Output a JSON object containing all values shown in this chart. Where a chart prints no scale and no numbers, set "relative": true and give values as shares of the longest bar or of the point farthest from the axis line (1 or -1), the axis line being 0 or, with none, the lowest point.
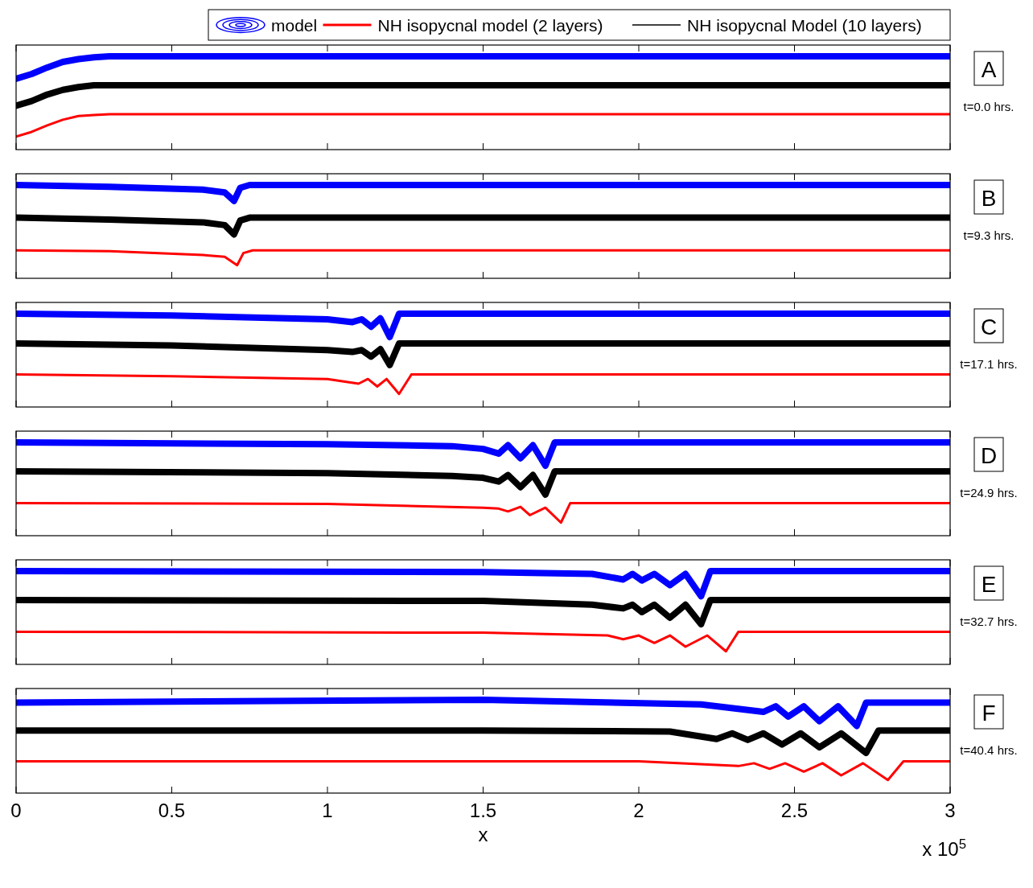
{
  "chart_data": [
    {
      "type": "line",
      "relative": true,
      "xlim": [
        0,
        3
      ],
      "xticks": [
        0,
        0.5,
        1,
        1.5,
        2,
        2.5,
        3
      ],
      "tick_labels": false,
      "legend": "top right",
      "annotations": [
        "A",
        "t=0.0 hrs."
      ],
      "series": [
        {
          "name": "model",
          "color": "#0000ff",
          "x": [
            0,
            0.05,
            0.1,
            0.15,
            0.2,
            0.25,
            0.3,
            3
          ],
          "values": [
            0.76,
            0.81,
            0.88,
            0.94,
            0.97,
            0.99,
            1,
            1
          ]
        },
        {
          "name": "NH isopycnal model (2 layers)",
          "color": "#ff0000",
          "x": [
            0,
            0.05,
            0.1,
            0.15,
            0.2,
            0.25,
            0.3,
            3
          ],
          "values": [
            0.14,
            0.19,
            0.26,
            0.32,
            0.36,
            0.37,
            0.38,
            0.38
          ]
        },
        {
          "name": "NH isopycnal Model (10 layers)",
          "color": "#000000",
          "x": [
            0,
            0.05,
            0.1,
            0.15,
            0.2,
            0.25,
            0.3,
            3
          ],
          "values": [
            0.47,
            0.52,
            0.59,
            0.64,
            0.67,
            0.69,
            0.69,
            0.69
          ]
        }
      ]
    },
    {
      "type": "line",
      "relative": true,
      "xlim": [
        0,
        3
      ],
      "xticks": [
        0,
        0.5,
        1,
        1.5,
        2,
        2.5,
        3
      ],
      "tick_labels": false,
      "annotations": [
        "B",
        "t=9.3 hrs."
      ],
      "series": [
        {
          "color": "#0000ff",
          "x": [
            0,
            0.3,
            0.6,
            0.67,
            0.7,
            0.72,
            0.75,
            3
          ],
          "values": [
            1,
            0.98,
            0.95,
            0.92,
            0.83,
            0.97,
            1,
            1
          ]
        },
        {
          "color": "#ff0000",
          "x": [
            0,
            0.3,
            0.6,
            0.67,
            0.71,
            0.73,
            0.76,
            3
          ],
          "values": [
            0.3,
            0.29,
            0.25,
            0.23,
            0.14,
            0.27,
            0.3,
            0.3
          ]
        },
        {
          "color": "#000000",
          "x": [
            0,
            0.3,
            0.6,
            0.67,
            0.7,
            0.72,
            0.75,
            3
          ],
          "values": [
            0.65,
            0.63,
            0.6,
            0.57,
            0.47,
            0.62,
            0.65,
            0.65
          ]
        }
      ]
    },
    {
      "type": "line",
      "relative": true,
      "xlim": [
        0,
        3
      ],
      "xticks": [
        0,
        0.5,
        1,
        1.5,
        2,
        2.5,
        3
      ],
      "tick_labels": false,
      "annotations": [
        "C",
        "t=17.1 hrs."
      ],
      "series": [
        {
          "color": "#0000ff",
          "x": [
            0,
            0.5,
            1,
            1.08,
            1.11,
            1.14,
            1.17,
            1.2,
            1.23,
            3
          ],
          "values": [
            1,
            0.98,
            0.94,
            0.91,
            0.94,
            0.86,
            0.95,
            0.75,
            1,
            1
          ]
        },
        {
          "color": "#ff0000",
          "x": [
            0,
            0.5,
            1,
            1.1,
            1.13,
            1.16,
            1.19,
            1.23,
            1.27,
            3
          ],
          "values": [
            0.35,
            0.33,
            0.3,
            0.25,
            0.3,
            0.22,
            0.3,
            0.14,
            0.35,
            0.35
          ]
        },
        {
          "color": "#000000",
          "x": [
            0,
            0.5,
            1,
            1.08,
            1.11,
            1.14,
            1.17,
            1.2,
            1.23,
            3
          ],
          "values": [
            0.68,
            0.66,
            0.61,
            0.59,
            0.61,
            0.54,
            0.62,
            0.45,
            0.68,
            0.68
          ]
        }
      ]
    },
    {
      "type": "line",
      "relative": true,
      "xlim": [
        0,
        3
      ],
      "xticks": [
        0,
        0.5,
        1,
        1.5,
        2,
        2.5,
        3
      ],
      "tick_labels": false,
      "annotations": [
        "D",
        "t=24.9 hrs."
      ],
      "series": [
        {
          "color": "#0000ff",
          "x": [
            0,
            1,
            1.4,
            1.5,
            1.55,
            1.58,
            1.62,
            1.66,
            1.7,
            1.73,
            3
          ],
          "values": [
            1,
            0.98,
            0.96,
            0.93,
            0.88,
            0.97,
            0.83,
            0.97,
            0.75,
            1,
            1
          ]
        },
        {
          "color": "#ff0000",
          "x": [
            0,
            1,
            1.5,
            1.55,
            1.58,
            1.62,
            1.65,
            1.7,
            1.75,
            1.78,
            3
          ],
          "values": [
            0.35,
            0.34,
            0.3,
            0.29,
            0.26,
            0.31,
            0.22,
            0.3,
            0.14,
            0.35,
            0.35
          ]
        },
        {
          "color": "#000000",
          "x": [
            0,
            1,
            1.4,
            1.5,
            1.55,
            1.58,
            1.62,
            1.66,
            1.7,
            1.73,
            3
          ],
          "values": [
            0.69,
            0.67,
            0.64,
            0.62,
            0.58,
            0.65,
            0.52,
            0.65,
            0.44,
            0.69,
            0.69
          ]
        }
      ]
    },
    {
      "type": "line",
      "relative": true,
      "xlim": [
        0,
        3
      ],
      "xticks": [
        0,
        0.5,
        1,
        1.5,
        2,
        2.5,
        3
      ],
      "tick_labels": false,
      "annotations": [
        "E",
        "t=32.7 hrs."
      ],
      "series": [
        {
          "color": "#0000ff",
          "x": [
            0,
            1.5,
            1.85,
            1.95,
            1.98,
            2.01,
            2.05,
            2.1,
            2.15,
            2.2,
            2.23,
            3
          ],
          "values": [
            1,
            0.99,
            0.97,
            0.91,
            0.97,
            0.9,
            0.97,
            0.85,
            0.97,
            0.73,
            1,
            1
          ]
        },
        {
          "color": "#ff0000",
          "x": [
            0,
            1.5,
            1.9,
            1.95,
            2,
            2.05,
            2.1,
            2.15,
            2.22,
            2.28,
            2.32,
            3
          ],
          "values": [
            0.35,
            0.34,
            0.31,
            0.27,
            0.31,
            0.23,
            0.31,
            0.19,
            0.31,
            0.14,
            0.35,
            0.35
          ]
        },
        {
          "color": "#000000",
          "x": [
            0,
            1.5,
            1.85,
            1.95,
            1.98,
            2.01,
            2.05,
            2.1,
            2.15,
            2.2,
            2.23,
            3
          ],
          "values": [
            0.69,
            0.68,
            0.64,
            0.6,
            0.64,
            0.56,
            0.64,
            0.5,
            0.64,
            0.43,
            0.69,
            0.69
          ]
        }
      ]
    },
    {
      "type": "line",
      "relative": true,
      "xlim": [
        0,
        3
      ],
      "xticks": [
        0,
        0.5,
        1,
        1.5,
        2,
        2.5,
        3
      ],
      "xlabel": "x",
      "annotations": [
        "F",
        "t=40.4 hrs.",
        "x 10$^{5}$"
      ],
      "series": [
        {
          "color": "#0000ff",
          "x": [
            0,
            1.5,
            2.2,
            2.4,
            2.44,
            2.48,
            2.53,
            2.58,
            2.64,
            2.7,
            2.73,
            3
          ],
          "values": [
            0.97,
            1,
            0.95,
            0.87,
            0.93,
            0.82,
            0.93,
            0.77,
            0.93,
            0.72,
            0.97,
            0.97
          ]
        },
        {
          "color": "#ff0000",
          "x": [
            0,
            2,
            2.32,
            2.37,
            2.42,
            2.47,
            2.53,
            2.59,
            2.65,
            2.72,
            2.8,
            2.85,
            3
          ],
          "values": [
            0.34,
            0.34,
            0.29,
            0.32,
            0.26,
            0.32,
            0.23,
            0.32,
            0.19,
            0.32,
            0.14,
            0.34,
            0.34
          ]
        },
        {
          "color": "#000000",
          "x": [
            0,
            1.5,
            2.1,
            2.25,
            2.3,
            2.35,
            2.4,
            2.46,
            2.52,
            2.58,
            2.65,
            2.73,
            2.77,
            3
          ],
          "values": [
            0.67,
            0.67,
            0.66,
            0.58,
            0.64,
            0.57,
            0.64,
            0.52,
            0.64,
            0.49,
            0.64,
            0.43,
            0.67,
            0.67
          ]
        }
      ]
    }
  ]
}
